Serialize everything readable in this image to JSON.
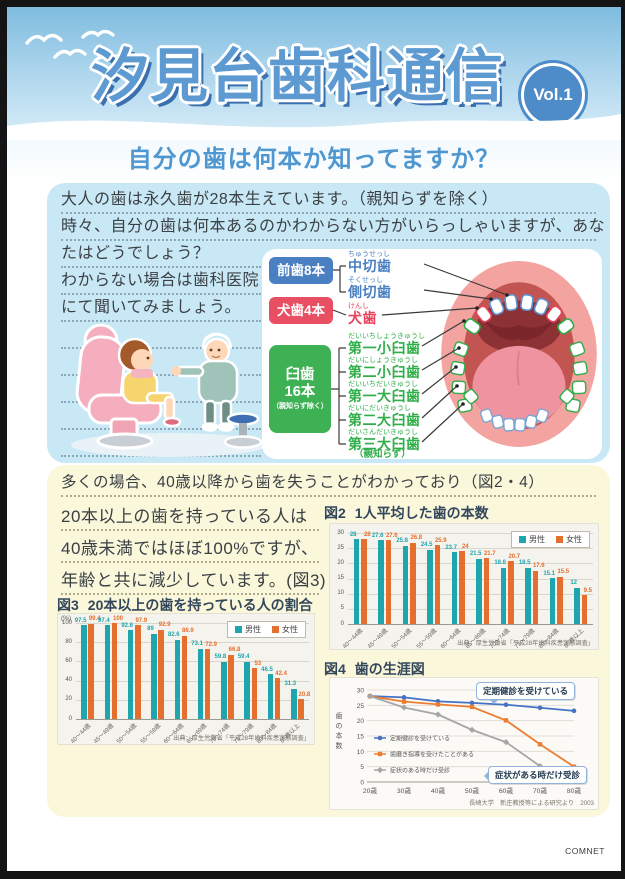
{
  "page": {
    "title": "汐見台歯科通信",
    "vol_badge": "Vol.1",
    "subtitle": "自分の歯は何本か知ってますか？",
    "footer_credit": "COMNET"
  },
  "colors": {
    "accent_blue": "#4f97d0",
    "male_teal": "#1fa5ad",
    "female_orange": "#e56f2e",
    "badge_blue": "#4a7fc1",
    "badge_red": "#e84f63",
    "badge_green": "#3eb154",
    "line_blue": "#4472c4",
    "line_orange": "#ed7d31",
    "line_gray": "#a6a6a6"
  },
  "intro_box": {
    "lines": [
      "大人の歯は永久歯が28本生えています。（親知らずを除く）",
      "時々、自分の歯は何本あるのかわからない方がいらっしゃいますが、あな",
      "たはどうでしょう？",
      "わからない場合は歯科医院",
      "にて聞いてみましょう。"
    ],
    "badges": [
      {
        "label": "前歯8本",
        "color": "#4a7fc1"
      },
      {
        "label": "犬歯4本",
        "color": "#e84f63"
      },
      {
        "label_line1": "臼歯",
        "label_line2": "16本",
        "note": "（親知らず除く）",
        "color": "#3eb154"
      }
    ],
    "tooth_labels": [
      {
        "furigana": "ちゅうせっし",
        "name": "中切歯",
        "color": "#4a7fc1"
      },
      {
        "furigana": "そくせっし",
        "name": "側切歯",
        "color": "#4a7fc1"
      },
      {
        "furigana": "けんし",
        "name": "犬歯",
        "color": "#e8425c"
      },
      {
        "furigana": "だいいちしょうきゅうし",
        "name": "第一小臼歯",
        "color": "#2fae49"
      },
      {
        "furigana": "だいにしょうきゅうし",
        "name": "第二小臼歯",
        "color": "#2fae49"
      },
      {
        "furigana": "だいいちだいきゅうし",
        "name": "第一大臼歯",
        "color": "#2fae49"
      },
      {
        "furigana": "だいにだいきゅうし",
        "name": "第二大臼歯",
        "color": "#2fae49"
      },
      {
        "furigana": "だいさんだいきゅうし",
        "name": "第三大臼歯",
        "color": "#2fae49",
        "note": "（親知らず）"
      }
    ]
  },
  "stats_box": {
    "lines": [
      "多くの場合、40歳以降から歯を失うことがわかっており（図2・4）",
      "20本以上の歯を持っている人は",
      "40歳未満ではほぼ100%ですが、",
      "年齢と共に減少しています。(図3)"
    ]
  },
  "chart_data": [
    {
      "id": "fig2",
      "type": "bar",
      "fig_label": "図2",
      "title": "1人平均した歯の本数",
      "categories": [
        "40〜44歳",
        "45〜49歳",
        "50〜54歳",
        "55〜59歳",
        "60〜64歳",
        "65〜69歳",
        "70〜74歳",
        "75〜79歳",
        "80〜84歳",
        "85歳以上"
      ],
      "series": [
        {
          "name": "男性",
          "color": "#1fa5ad",
          "values": [
            28,
            27.6,
            25.8,
            24.5,
            23.7,
            21.5,
            18.6,
            18.5,
            15.1,
            12
          ]
        },
        {
          "name": "女性",
          "color": "#e56f2e",
          "values": [
            28,
            27.6,
            26.8,
            25.9,
            24,
            21.7,
            20.7,
            17.6,
            15.5,
            9.5
          ]
        }
      ],
      "ylim": [
        0,
        30
      ],
      "yticks": [
        0,
        5,
        10,
        15,
        20,
        25,
        30
      ],
      "grid": true,
      "legend_position": "top-right",
      "source": "出典：厚生労働省「平成28年歯科疾患実態調査」"
    },
    {
      "id": "fig3",
      "type": "bar",
      "fig_label": "図3",
      "title": "20本以上の歯を持っている人の割合",
      "unit_label": "(%)",
      "categories": [
        "40〜44歳",
        "45〜49歳",
        "50〜54歳",
        "55〜59歳",
        "60〜64歳",
        "65〜69歳",
        "70〜74歳",
        "75〜79歳",
        "80〜84歳",
        "85歳以上"
      ],
      "series": [
        {
          "name": "男性",
          "color": "#1fa5ad",
          "values": [
            97.5,
            97.4,
            92.6,
            89,
            82.6,
            73.1,
            59.8,
            59.4,
            46.5,
            31.3
          ]
        },
        {
          "name": "女性",
          "color": "#e56f2e",
          "values": [
            99.4,
            100,
            97.9,
            92.9,
            86.9,
            72.9,
            66.8,
            53,
            42.4,
            20.8
          ]
        }
      ],
      "ylim": [
        0,
        100
      ],
      "yticks": [
        0,
        20,
        40,
        60,
        80,
        100
      ],
      "grid": true,
      "legend_position": "top-right",
      "source": "出典：厚生労働省「平成28年歯科疾患実態調査」"
    },
    {
      "id": "fig4",
      "type": "line",
      "fig_label": "図4",
      "title": "歯の生涯図",
      "ylabel": "歯の本数",
      "x": [
        "20歳",
        "30歳",
        "40歳",
        "50歳",
        "60歳",
        "70歳",
        "80歳"
      ],
      "series": [
        {
          "name": "定期健診を受けている",
          "color": "#4472c4",
          "marker": "circle",
          "values": [
            28,
            27.6,
            26.3,
            25.8,
            25.2,
            24.2,
            23.2
          ]
        },
        {
          "name": "歯磨き指導を受けたことがある",
          "color": "#ed7d31",
          "marker": "square",
          "values": [
            28,
            26.2,
            25.3,
            24.5,
            20.1,
            12.3,
            5
          ]
        },
        {
          "name": "症状のある時だけ受診",
          "color": "#a6a6a6",
          "marker": "diamond",
          "values": [
            28,
            24.3,
            22,
            17,
            13,
            5.2,
            0.3
          ]
        }
      ],
      "ylim": [
        0,
        30
      ],
      "yticks": [
        0,
        5,
        10,
        15,
        20,
        25,
        30
      ],
      "grid": true,
      "callouts": [
        {
          "text": "定期健診を受けている"
        },
        {
          "text": "症状がある時だけ受診"
        }
      ],
      "source": "長崎大学　新庄教授等による研究より　2003"
    }
  ]
}
